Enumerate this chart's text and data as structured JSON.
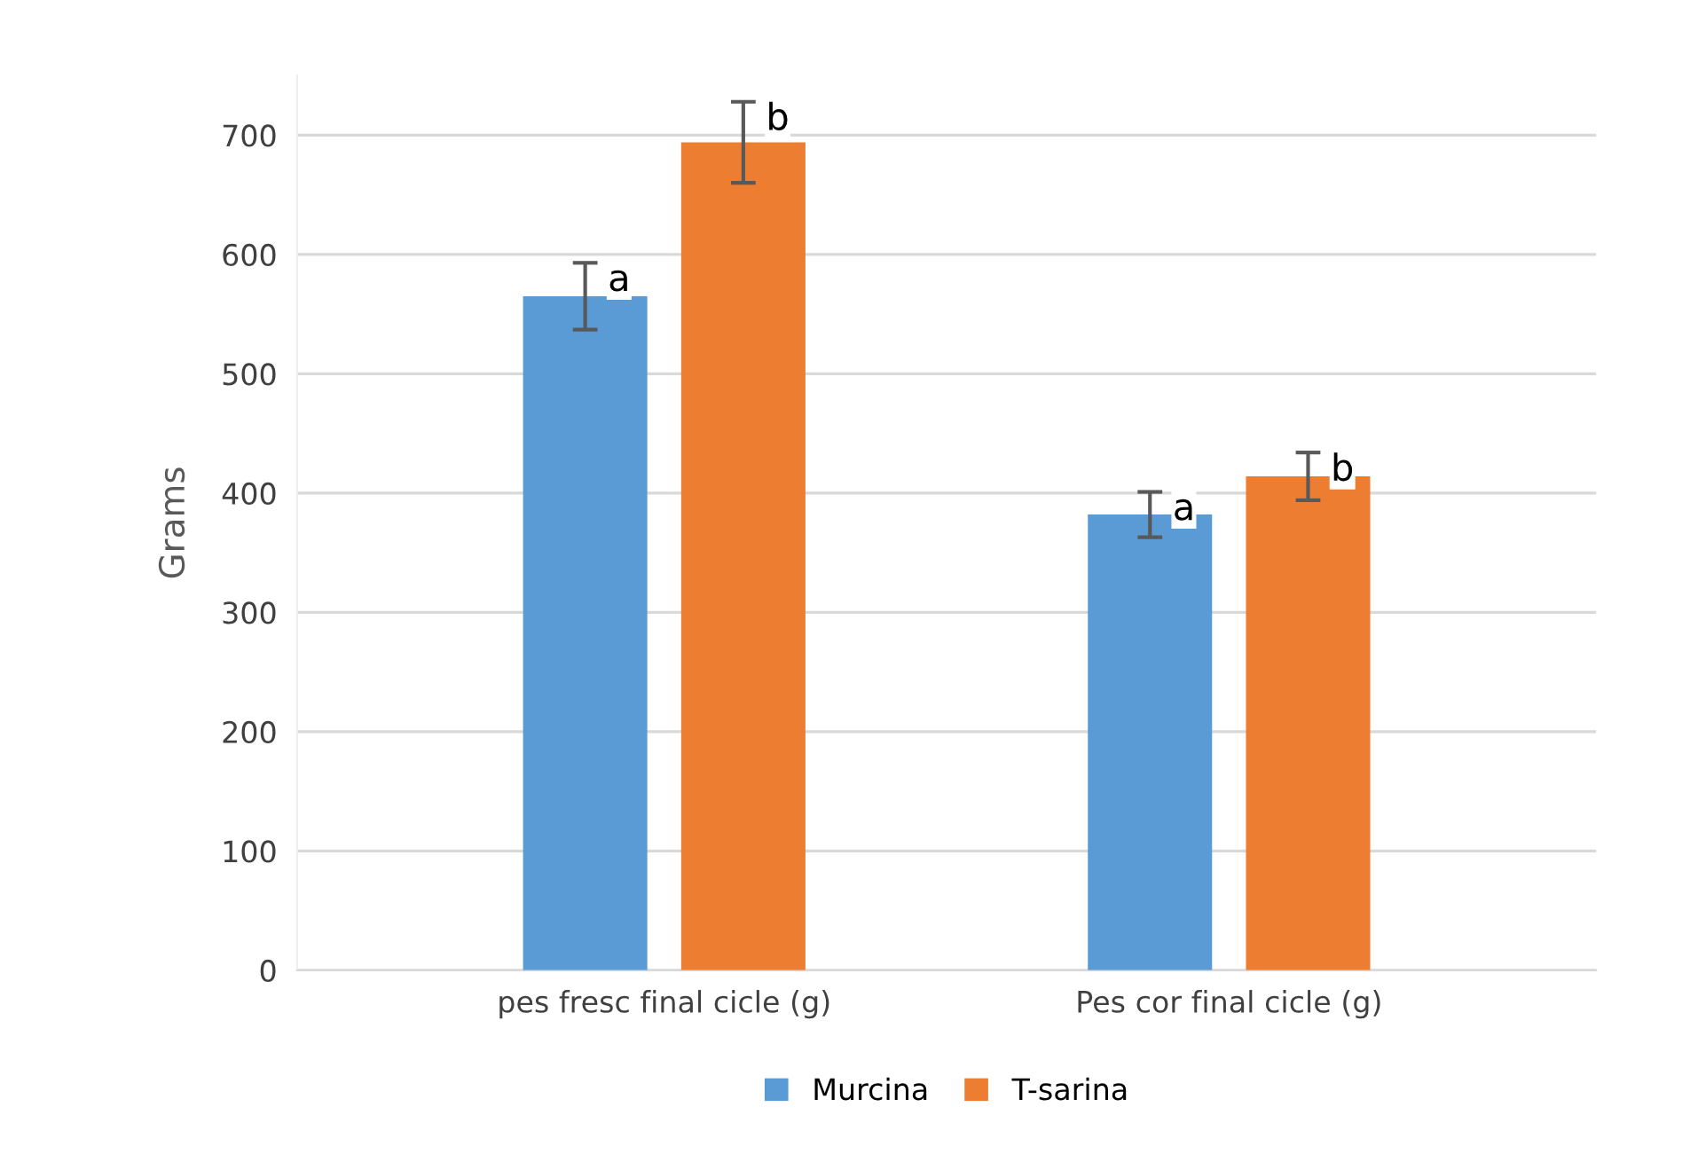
{
  "chart_data": {
    "type": "bar",
    "ylabel": "Grams",
    "categories": [
      "pes fresc final cicle (g)",
      "Pes cor final cicle (g)"
    ],
    "series": [
      {
        "name": "Murcina",
        "color": "#5b9bd5",
        "values": [
          565,
          382
        ],
        "errors": [
          28,
          19
        ]
      },
      {
        "name": "T-sarina",
        "color": "#ed7d31",
        "values": [
          694,
          414
        ],
        "errors": [
          34,
          20
        ]
      }
    ],
    "annotations": [
      "a",
      "b",
      "a",
      "b"
    ],
    "ylim": [
      0,
      750
    ],
    "yticks": [
      0,
      100,
      200,
      300,
      400,
      500,
      600,
      700
    ],
    "grid": "y",
    "legend": "bottom"
  }
}
